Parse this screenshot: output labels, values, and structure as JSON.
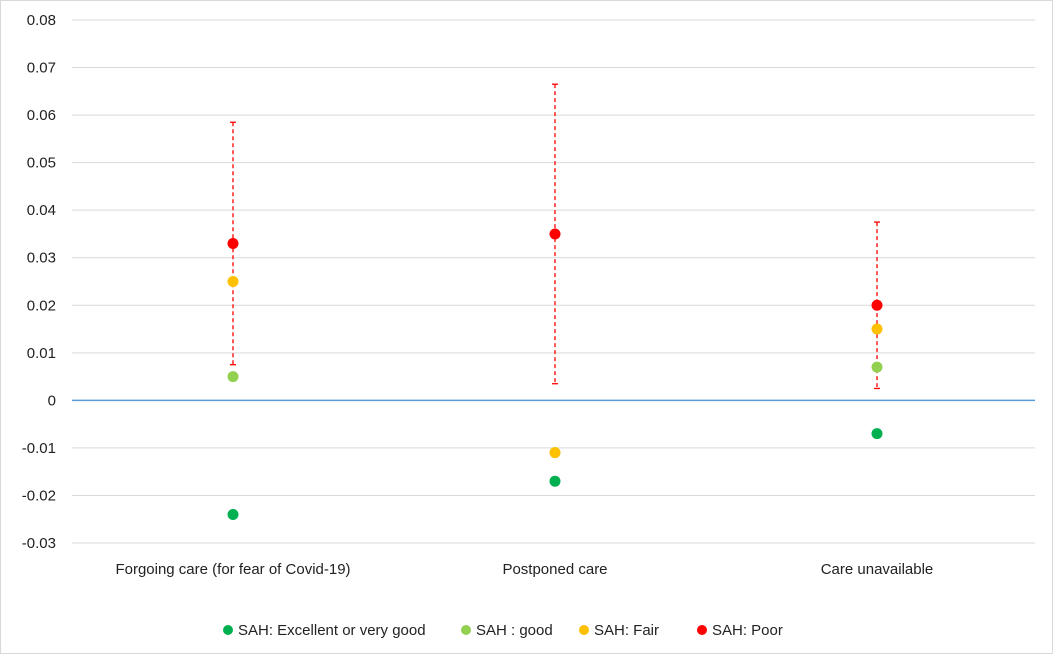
{
  "chart_data": {
    "type": "scatter",
    "title": "",
    "xlabel": "",
    "ylabel": "",
    "categories": [
      "Forgoing care (for fear of Covid-19)",
      "Postponed care",
      "Care unavailable"
    ],
    "ylim": [
      -0.03,
      0.08
    ],
    "yticks": [
      -0.03,
      -0.02,
      -0.01,
      0,
      0.01,
      0.02,
      0.03,
      0.04,
      0.05,
      0.06,
      0.07,
      0.08
    ],
    "ytick_labels": [
      "-0.03",
      "-0.02",
      "-0.01",
      "0",
      "0.01",
      "0.02",
      "0.03",
      "0.04",
      "0.05",
      "0.06",
      "0.07",
      "0.08"
    ],
    "grid": true,
    "legend_position": "bottom",
    "zero_line_color": "#5b9bd5",
    "series": [
      {
        "name": "SAH: Excellent or very good",
        "color": "#00b050",
        "values": [
          -0.024,
          -0.017,
          -0.007
        ]
      },
      {
        "name": "SAH : good",
        "color": "#92d050",
        "values": [
          0.005,
          -0.011,
          0.007
        ]
      },
      {
        "name": "SAH: Fair",
        "color": "#ffc000",
        "values": [
          0.025,
          -0.011,
          0.015
        ]
      },
      {
        "name": "SAH: Poor",
        "color": "#ff0000",
        "values": [
          0.033,
          0.035,
          0.02
        ],
        "error_low": [
          0.0075,
          0.0035,
          0.0025
        ],
        "error_high": [
          0.0585,
          0.0665,
          0.0375
        ]
      }
    ]
  }
}
